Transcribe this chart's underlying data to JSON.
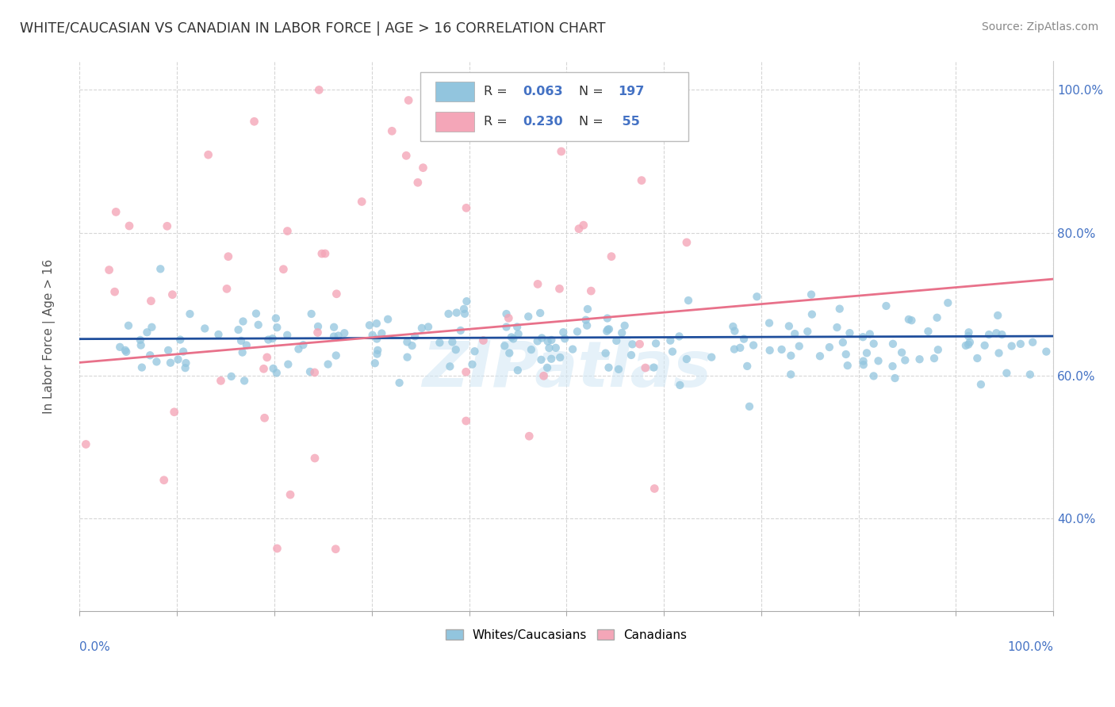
{
  "title": "WHITE/CAUCASIAN VS CANADIAN IN LABOR FORCE | AGE > 16 CORRELATION CHART",
  "source": "Source: ZipAtlas.com",
  "ylabel": "In Labor Force | Age > 16",
  "xlim": [
    0.0,
    1.0
  ],
  "ylim": [
    0.27,
    1.04
  ],
  "yticks": [
    0.4,
    0.6,
    0.8,
    1.0
  ],
  "ytick_labels": [
    "40.0%",
    "60.0%",
    "80.0%",
    "100.0%"
  ],
  "legend_label_blue": "Whites/Caucasians",
  "legend_label_pink": "Canadians",
  "blue_color": "#92c5de",
  "pink_color": "#f4a6b8",
  "blue_line_color": "#1f4e9c",
  "pink_line_color": "#e8718a",
  "blue_R": 0.063,
  "blue_N": 197,
  "pink_R": 0.23,
  "pink_N": 55,
  "background_color": "#ffffff",
  "grid_color": "#cccccc",
  "title_color": "#333333",
  "source_color": "#888888",
  "watermark_color": "#d4e8f5",
  "blue_trend_y0": 0.651,
  "blue_trend_y1": 0.655,
  "pink_trend_y0": 0.618,
  "pink_trend_y1": 0.735
}
